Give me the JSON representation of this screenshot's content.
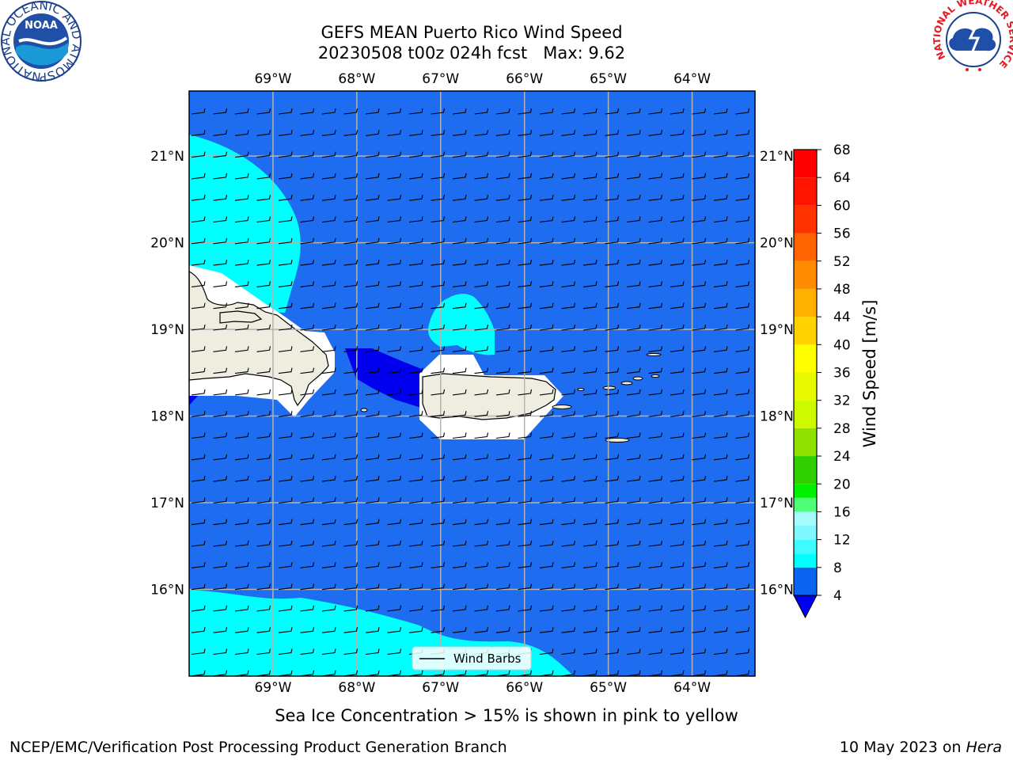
{
  "title": {
    "line1": "GEFS MEAN Puerto Rico Wind Speed",
    "line2": "20230508 t00z 024h fcst   Max: 9.62"
  },
  "axes": {
    "lon_labels": [
      "69°W",
      "68°W",
      "67°W",
      "66°W",
      "65°W",
      "64°W"
    ],
    "lat_labels": [
      "21°N",
      "20°N",
      "19°N",
      "18°N",
      "17°N",
      "16°N"
    ],
    "lon_range": [
      -70.0,
      -63.25
    ],
    "lat_range": [
      15.0,
      21.75
    ],
    "grid": true
  },
  "colorbar": {
    "label": "Wind Speed [m/s]",
    "ticks": [
      "68",
      "64",
      "60",
      "56",
      "52",
      "48",
      "44",
      "40",
      "36",
      "32",
      "28",
      "24",
      "20",
      "16",
      "12",
      "8",
      "4"
    ],
    "levels": [
      4,
      8,
      10,
      12,
      14,
      16,
      18,
      20,
      24,
      28,
      32,
      36,
      40,
      44,
      48,
      52,
      56,
      60,
      64,
      68
    ],
    "colors": [
      "#0a64f0",
      "#00ffff",
      "#3ffbff",
      "#7ff8ff",
      "#a5fcff",
      "#50ff78",
      "#00f000",
      "#30d000",
      "#90e000",
      "#cdfa00",
      "#e8fa00",
      "#ffff00",
      "#ffd200",
      "#ffb000",
      "#ff8c00",
      "#ff6400",
      "#ff3200",
      "#ff1400",
      "#ff0000"
    ],
    "extend_color": "#0000f0"
  },
  "field": {
    "background_color": "#1e6cf0",
    "low_color": "#0000ee",
    "mid_color": "#00ffff",
    "land_color": "#eeede0"
  },
  "legend": {
    "label": "Wind Barbs"
  },
  "footer": {
    "note": "Sea Ice Concentration > 15% is shown in pink to yellow",
    "left": "NCEP/EMC/Verification Post Processing Product Generation Branch",
    "right_prefix": "10 May 2023 on ",
    "right_machine": "Hera"
  },
  "logos": {
    "noaa": {
      "icon": "noaa-logo",
      "text": "NOAA",
      "ring_text": "NATIONAL OCEANIC AND ATMOSPHERIC ADMINISTRATION · U.S. DEPARTMENT OF COMMERCE"
    },
    "nws": {
      "icon": "nws-logo",
      "ring_text": "NATIONAL WEATHER SERVICE"
    }
  }
}
